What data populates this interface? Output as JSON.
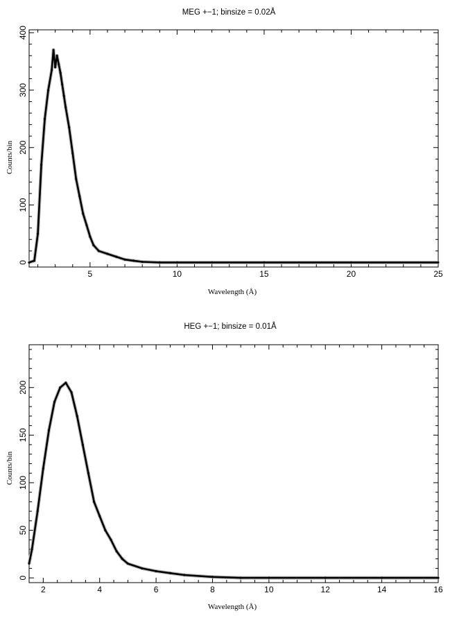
{
  "chart_data": [
    {
      "type": "line",
      "title": "MEG +−1; binsize = 0.02Å",
      "xlabel": "Wavelength (Å)",
      "ylabel": "Counts/bin",
      "xlim": [
        1.5,
        25
      ],
      "ylim": [
        -8,
        405
      ],
      "xticks": [
        5,
        10,
        15,
        20,
        25
      ],
      "xtick_labels": [
        "5",
        "10",
        "15",
        "20",
        "25"
      ],
      "yticks": [
        0,
        100,
        200,
        300,
        400
      ],
      "ytick_labels": [
        "0",
        "100",
        "200",
        "300",
        "400"
      ],
      "grid": false,
      "series": [
        {
          "x": [
            1.5,
            1.8,
            2.0,
            2.2,
            2.4,
            2.6,
            2.8,
            2.9,
            3.0,
            3.1,
            3.2,
            3.3,
            3.4,
            3.5,
            3.6,
            3.8,
            4.0,
            4.2,
            4.4,
            4.6,
            4.8,
            5.0,
            5.2,
            5.5,
            6.0,
            6.5,
            7.0,
            7.5,
            8.0,
            9.0,
            10.0,
            12.0,
            15.0,
            20.0,
            25.0
          ],
          "y": [
            0,
            3,
            50,
            170,
            250,
            300,
            335,
            370,
            340,
            360,
            345,
            330,
            310,
            290,
            270,
            235,
            190,
            145,
            115,
            85,
            65,
            45,
            30,
            20,
            15,
            10,
            5,
            3,
            1,
            0,
            0,
            0,
            0,
            0,
            0
          ]
        }
      ]
    },
    {
      "type": "line",
      "title": "HEG +−1; binsize = 0.01Å",
      "xlabel": "Wavelength (Å)",
      "ylabel": "Counts/bin",
      "xlim": [
        1.5,
        16
      ],
      "ylim": [
        -5,
        245
      ],
      "xticks": [
        2,
        4,
        6,
        8,
        10,
        12,
        14,
        16
      ],
      "xtick_labels": [
        "2",
        "4",
        "6",
        "8",
        "10",
        "12",
        "14",
        "16"
      ],
      "yticks": [
        0,
        50,
        100,
        150,
        200
      ],
      "ytick_labels": [
        "0",
        "50",
        "100",
        "150",
        "200"
      ],
      "grid": false,
      "series": [
        {
          "x": [
            1.5,
            1.6,
            1.8,
            2.0,
            2.2,
            2.4,
            2.6,
            2.8,
            3.0,
            3.2,
            3.4,
            3.6,
            3.8,
            4.0,
            4.2,
            4.4,
            4.6,
            4.8,
            5.0,
            5.5,
            6.0,
            6.5,
            7.0,
            8.0,
            9.0,
            10.0,
            12.0,
            14.0,
            16.0
          ],
          "y": [
            15,
            30,
            70,
            115,
            155,
            185,
            200,
            205,
            195,
            170,
            140,
            110,
            80,
            65,
            50,
            40,
            28,
            20,
            15,
            10,
            7,
            5,
            3,
            1,
            0,
            0,
            0,
            0,
            0
          ]
        }
      ]
    }
  ]
}
